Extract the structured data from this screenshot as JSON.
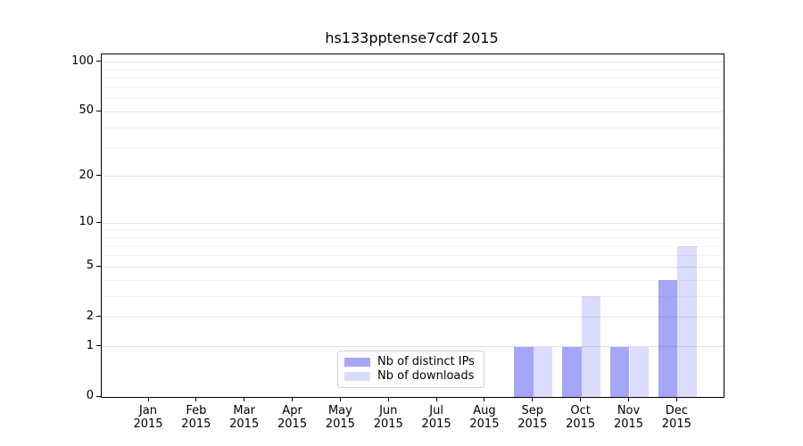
{
  "chart_data": {
    "type": "bar",
    "title": "hs133pptense7cdf 2015",
    "x_tick_months": [
      "Jan",
      "Feb",
      "Mar",
      "Apr",
      "May",
      "Jun",
      "Jul",
      "Aug",
      "Sep",
      "Oct",
      "Nov",
      "Dec"
    ],
    "x_tick_year": "2015",
    "series": [
      {
        "name": "Nb of distinct IPs",
        "color": "#4d4df280",
        "values": [
          0,
          0,
          0,
          0,
          0,
          0,
          0,
          0,
          1,
          1,
          1,
          4
        ]
      },
      {
        "name": "Nb of downloads",
        "color": "#4d4df233",
        "values": [
          0,
          0,
          0,
          0,
          0,
          0,
          0,
          0,
          1,
          3,
          1,
          7
        ]
      }
    ],
    "yscale": "log1p",
    "y_major_ticks": [
      0,
      1,
      2,
      5,
      10,
      20,
      50,
      100
    ],
    "y_minor_ticks": [
      3,
      4,
      6,
      7,
      8,
      9,
      30,
      40,
      60,
      70,
      80,
      90
    ],
    "ylim": [
      0,
      113
    ],
    "grid": "horizontal-only",
    "legend_position": "inside-bottom-center",
    "colors": {
      "bar_distinct_ips": "#a6a6f8",
      "bar_downloads": "#dbdbfc",
      "grid_major": "#e2e2e2",
      "grid_minor": "#f3f3f3",
      "axis": "#000000"
    }
  }
}
